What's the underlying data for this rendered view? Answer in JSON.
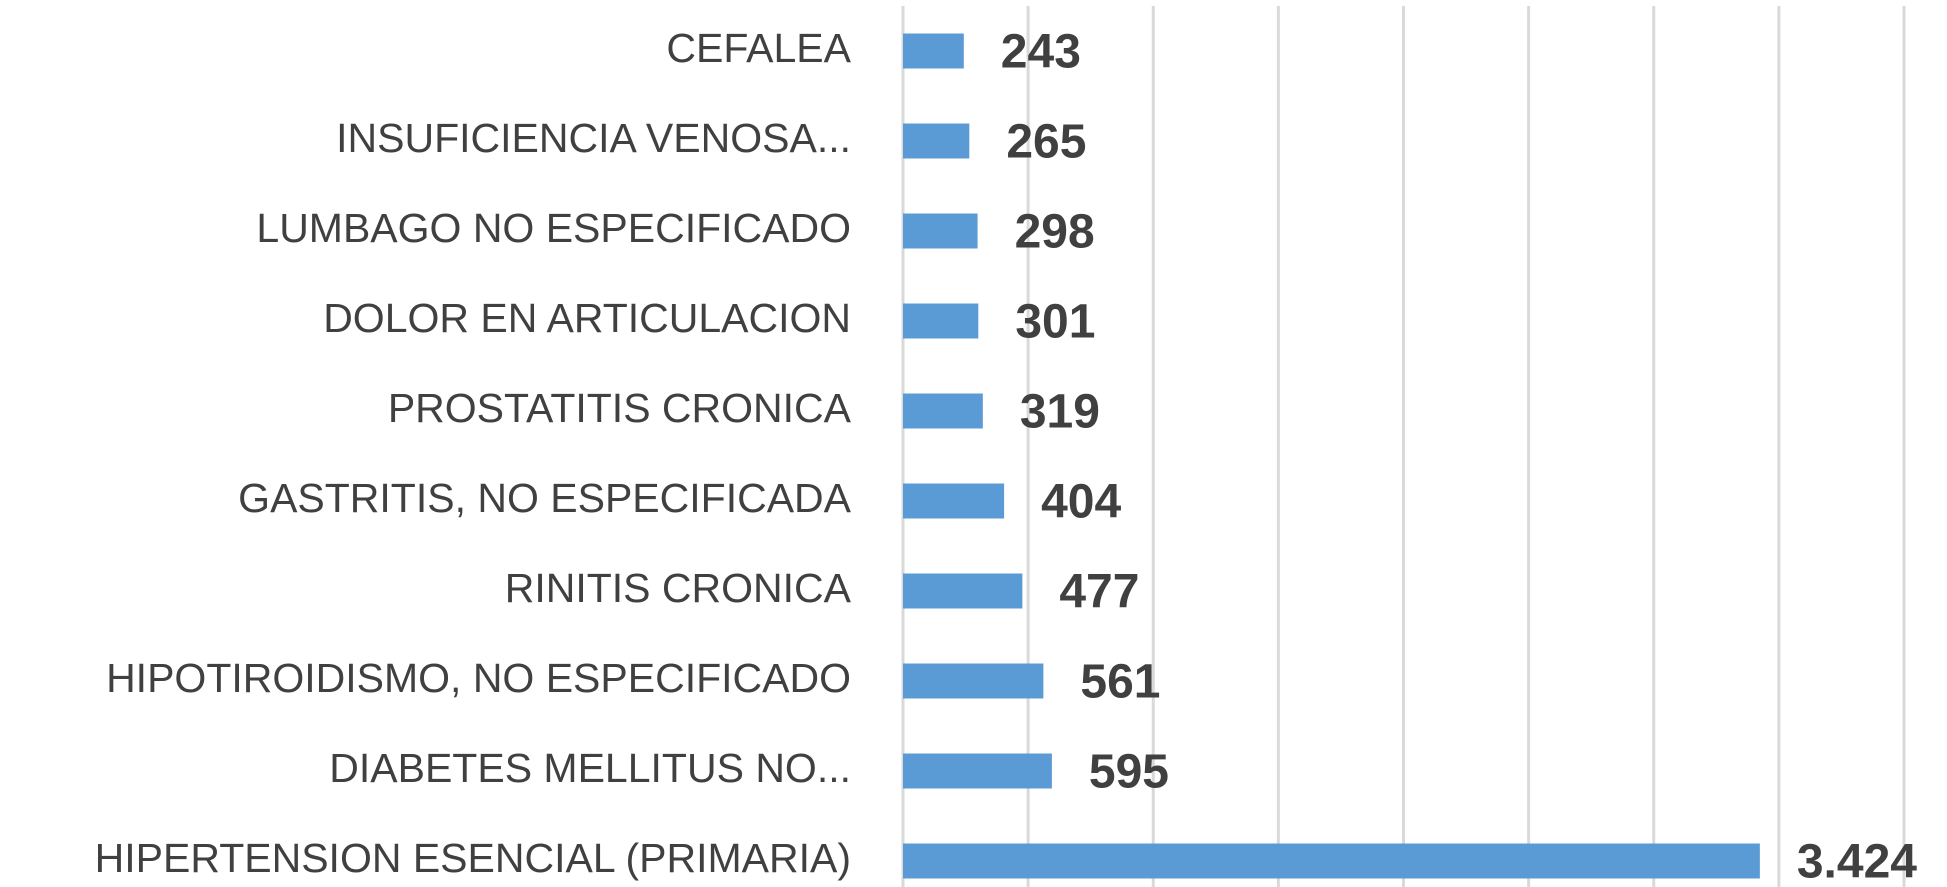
{
  "chart_data": {
    "type": "bar",
    "orientation": "horizontal",
    "categories": [
      "CEFALEA",
      "INSUFICIENCIA VENOSA...",
      "LUMBAGO NO ESPECIFICADO",
      "DOLOR EN ARTICULACION",
      "PROSTATITIS CRONICA",
      "GASTRITIS, NO ESPECIFICADA",
      "RINITIS CRONICA",
      "HIPOTIROIDISMO, NO ESPECIFICADO",
      "DIABETES MELLITUS NO...",
      "HIPERTENSION ESENCIAL (PRIMARIA)"
    ],
    "values": [
      243,
      265,
      298,
      301,
      319,
      404,
      477,
      561,
      595,
      3424
    ],
    "value_labels": [
      "243",
      "265",
      "298",
      "301",
      "319",
      "404",
      "477",
      "561",
      "595",
      "3.424"
    ],
    "color": "#5b9bd5",
    "xlim": [
      0,
      4000
    ],
    "xticks": [
      0,
      500,
      1000,
      1500,
      2000,
      2500,
      3000,
      3500,
      4000
    ],
    "grid": true
  }
}
